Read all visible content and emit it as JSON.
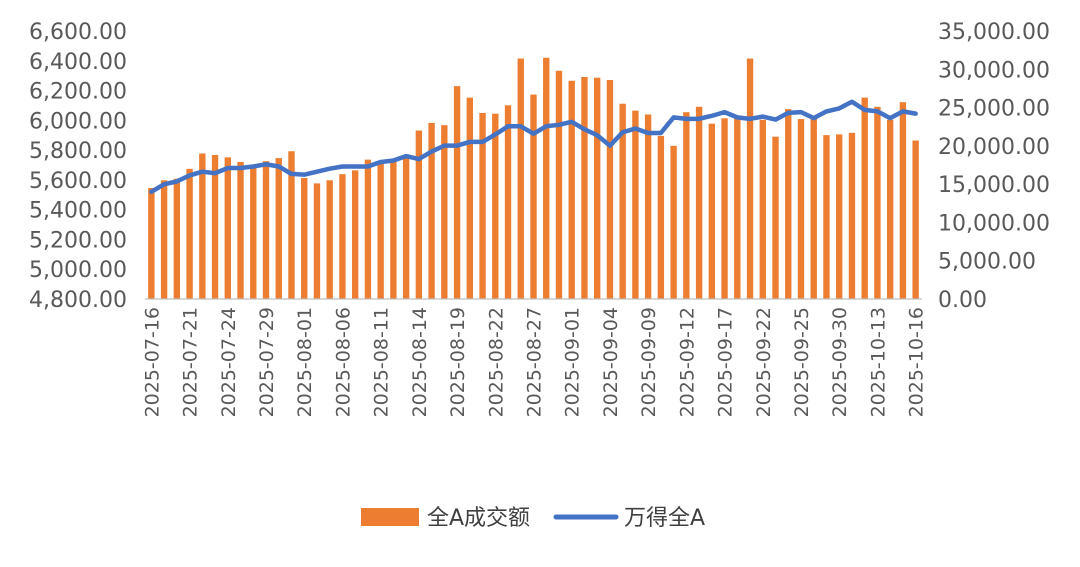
{
  "chart_data": {
    "type": "bar+line",
    "title": "",
    "xlabel": "",
    "ylabel": "",
    "grid": false,
    "legend_position": "bottom",
    "colors": {
      "bar": "#ED7D31",
      "line": "#4472C4",
      "text": "#595959",
      "axis": "#BFBFBF"
    },
    "x": [
      "2025-07-16",
      "2025-07-17",
      "2025-07-18",
      "2025-07-21",
      "2025-07-22",
      "2025-07-23",
      "2025-07-24",
      "2025-07-25",
      "2025-07-28",
      "2025-07-29",
      "2025-07-30",
      "2025-07-31",
      "2025-08-01",
      "2025-08-04",
      "2025-08-05",
      "2025-08-06",
      "2025-08-07",
      "2025-08-08",
      "2025-08-11",
      "2025-08-12",
      "2025-08-13",
      "2025-08-14",
      "2025-08-15",
      "2025-08-18",
      "2025-08-19",
      "2025-08-20",
      "2025-08-21",
      "2025-08-22",
      "2025-08-25",
      "2025-08-26",
      "2025-08-27",
      "2025-08-28",
      "2025-08-29",
      "2025-09-01",
      "2025-09-02",
      "2025-09-03",
      "2025-09-04",
      "2025-09-05",
      "2025-09-08",
      "2025-09-09",
      "2025-09-10",
      "2025-09-11",
      "2025-09-12",
      "2025-09-15",
      "2025-09-16",
      "2025-09-17",
      "2025-09-18",
      "2025-09-19",
      "2025-09-22",
      "2025-09-23",
      "2025-09-24",
      "2025-09-25",
      "2025-09-26",
      "2025-09-29",
      "2025-09-30",
      "2025-10-09",
      "2025-10-10",
      "2025-10-13",
      "2025-10-14",
      "2025-10-15",
      "2025-10-16"
    ],
    "x_tick_labels": [
      "2025-07-16",
      "2025-07-21",
      "2025-07-24",
      "2025-07-29",
      "2025-08-01",
      "2025-08-06",
      "2025-08-11",
      "2025-08-14",
      "2025-08-19",
      "2025-08-22",
      "2025-08-27",
      "2025-09-01",
      "2025-09-04",
      "2025-09-09",
      "2025-09-12",
      "2025-09-17",
      "2025-09-22",
      "2025-09-25",
      "2025-09-30",
      "2025-10-13",
      "2025-10-16"
    ],
    "y_left": {
      "min": 4800,
      "max": 6600,
      "ticks": [
        "4,800.00",
        "5,000.00",
        "5,200.00",
        "5,400.00",
        "5,600.00",
        "5,800.00",
        "6,000.00",
        "6,200.00",
        "6,400.00",
        "6,600.00"
      ]
    },
    "y_right": {
      "min": 0,
      "max": 35000,
      "ticks": [
        "0.00",
        "5,000.00",
        "10,000.00",
        "15,000.00",
        "20,000.00",
        "25,000.00",
        "30,000.00",
        "35,000.00"
      ]
    },
    "series": [
      {
        "name": "全A成交额",
        "kind": "bar",
        "axis": "right",
        "values": [
          14500,
          15500,
          15700,
          17000,
          19000,
          18800,
          18500,
          17900,
          17500,
          18000,
          18400,
          19300,
          15800,
          15100,
          15500,
          16300,
          16800,
          18200,
          17800,
          18200,
          18800,
          22000,
          23000,
          22700,
          27800,
          26300,
          24300,
          24200,
          25300,
          31400,
          26700,
          31500,
          29800,
          28500,
          29000,
          28900,
          28600,
          25500,
          24600,
          24100,
          21300,
          20000,
          24400,
          25100,
          22900,
          23600,
          23800,
          31400,
          23400,
          21200,
          24800,
          23500,
          23800,
          21400,
          21500,
          21700,
          26300,
          25100,
          23400,
          25700,
          20700
        ]
      },
      {
        "name": "万得全A",
        "kind": "line",
        "axis": "left",
        "values": [
          5520,
          5570,
          5590,
          5630,
          5655,
          5645,
          5680,
          5680,
          5690,
          5705,
          5690,
          5640,
          5635,
          5655,
          5675,
          5690,
          5690,
          5690,
          5720,
          5730,
          5760,
          5740,
          5790,
          5830,
          5830,
          5855,
          5855,
          5905,
          5960,
          5960,
          5910,
          5960,
          5970,
          5990,
          5940,
          5900,
          5830,
          5920,
          5945,
          5915,
          5915,
          6020,
          6010,
          6010,
          6030,
          6055,
          6020,
          6010,
          6025,
          6005,
          6050,
          6055,
          6015,
          6060,
          6080,
          6125,
          6070,
          6060,
          6015,
          6060,
          6045
        ]
      }
    ]
  }
}
